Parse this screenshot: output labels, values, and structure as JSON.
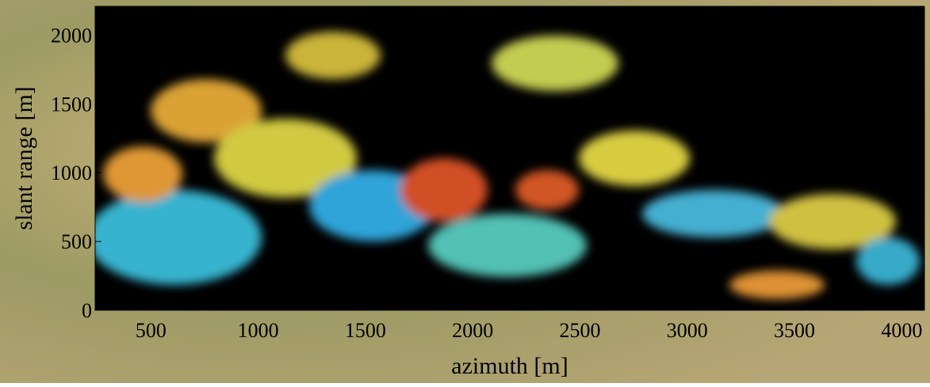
{
  "chart_data": {
    "type": "image",
    "x_label": "azimuth [m]",
    "y_label": "slant range [m]",
    "xlim": [
      240,
      4106
    ],
    "xticks": [
      500,
      1000,
      1500,
      2000,
      2500,
      3000,
      3500,
      4000
    ],
    "ylim": [
      0,
      2210
    ],
    "yticks": [
      0,
      500,
      1000,
      1500,
      2000
    ]
  }
}
